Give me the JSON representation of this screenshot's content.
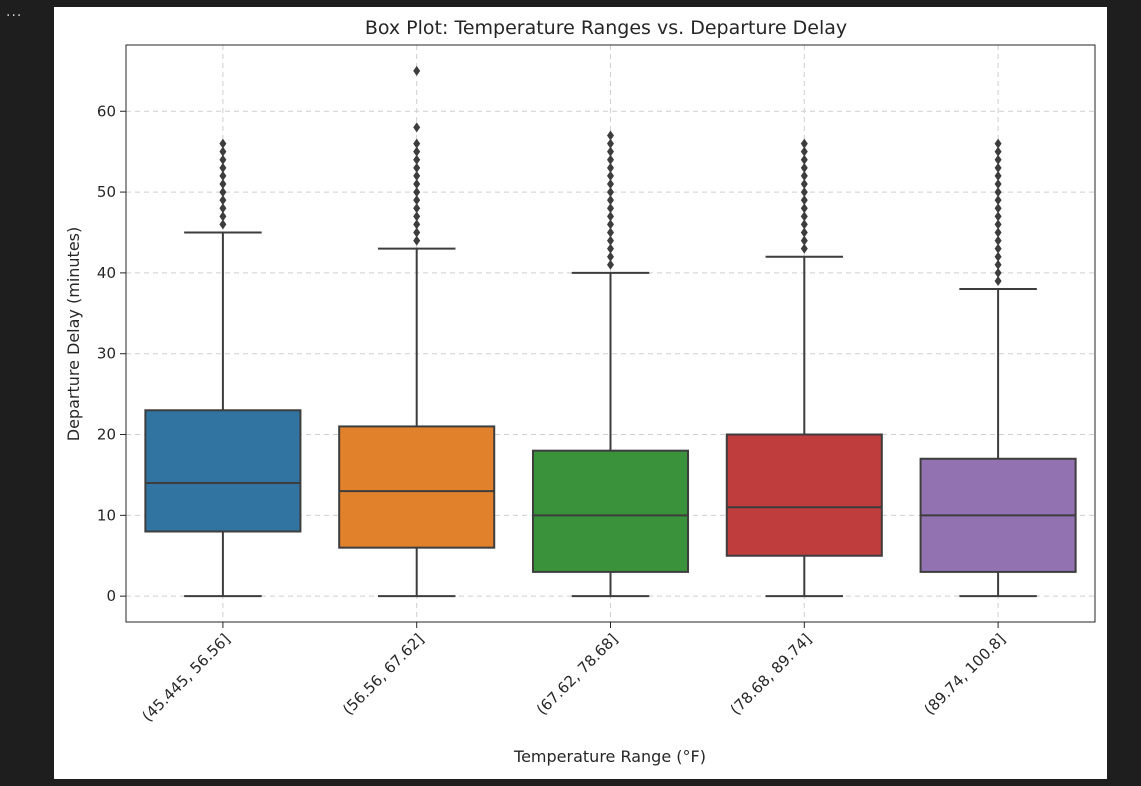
{
  "cell": {
    "menu_label": "..."
  },
  "chart_data": {
    "type": "box",
    "title": "Box Plot: Temperature Ranges vs. Departure Delay",
    "xlabel": "Temperature Range (°F)",
    "ylabel": "Departure Delay (minutes)",
    "ylim": [
      -3.2,
      68.2
    ],
    "yticks": [
      0,
      10,
      20,
      30,
      40,
      50,
      60
    ],
    "grid": true,
    "categories": [
      "(45.445, 56.56]",
      "(56.56, 67.62]",
      "(67.62, 78.68]",
      "(78.68, 89.74]",
      "(89.74, 100.8]"
    ],
    "colors": [
      "#3274a1",
      "#e1812c",
      "#3a923a",
      "#c03d3e",
      "#9372b2"
    ],
    "boxes": [
      {
        "whisker_low": 0,
        "q1": 8,
        "median": 14,
        "q3": 23,
        "whisker_high": 45,
        "fliers": [
          46,
          47,
          48,
          49,
          50,
          51,
          52,
          53,
          54,
          55,
          56
        ]
      },
      {
        "whisker_low": 0,
        "q1": 6,
        "median": 13,
        "q3": 21,
        "whisker_high": 43,
        "fliers": [
          44,
          45,
          46,
          47,
          48,
          49,
          50,
          51,
          52,
          53,
          54,
          55,
          56,
          58,
          65
        ]
      },
      {
        "whisker_low": 0,
        "q1": 3,
        "median": 10,
        "q3": 18,
        "whisker_high": 40,
        "fliers": [
          41,
          42,
          43,
          44,
          45,
          46,
          47,
          48,
          49,
          50,
          51,
          52,
          53,
          54,
          55,
          56,
          57
        ]
      },
      {
        "whisker_low": 0,
        "q1": 5,
        "median": 11,
        "q3": 20,
        "whisker_high": 42,
        "fliers": [
          43,
          44,
          45,
          46,
          47,
          48,
          49,
          50,
          51,
          52,
          53,
          54,
          55,
          56
        ]
      },
      {
        "whisker_low": 0,
        "q1": 3,
        "median": 10,
        "q3": 17,
        "whisker_high": 38,
        "fliers": [
          39,
          40,
          41,
          42,
          43,
          44,
          45,
          46,
          47,
          48,
          49,
          50,
          51,
          52,
          53,
          54,
          55,
          56
        ]
      }
    ]
  }
}
